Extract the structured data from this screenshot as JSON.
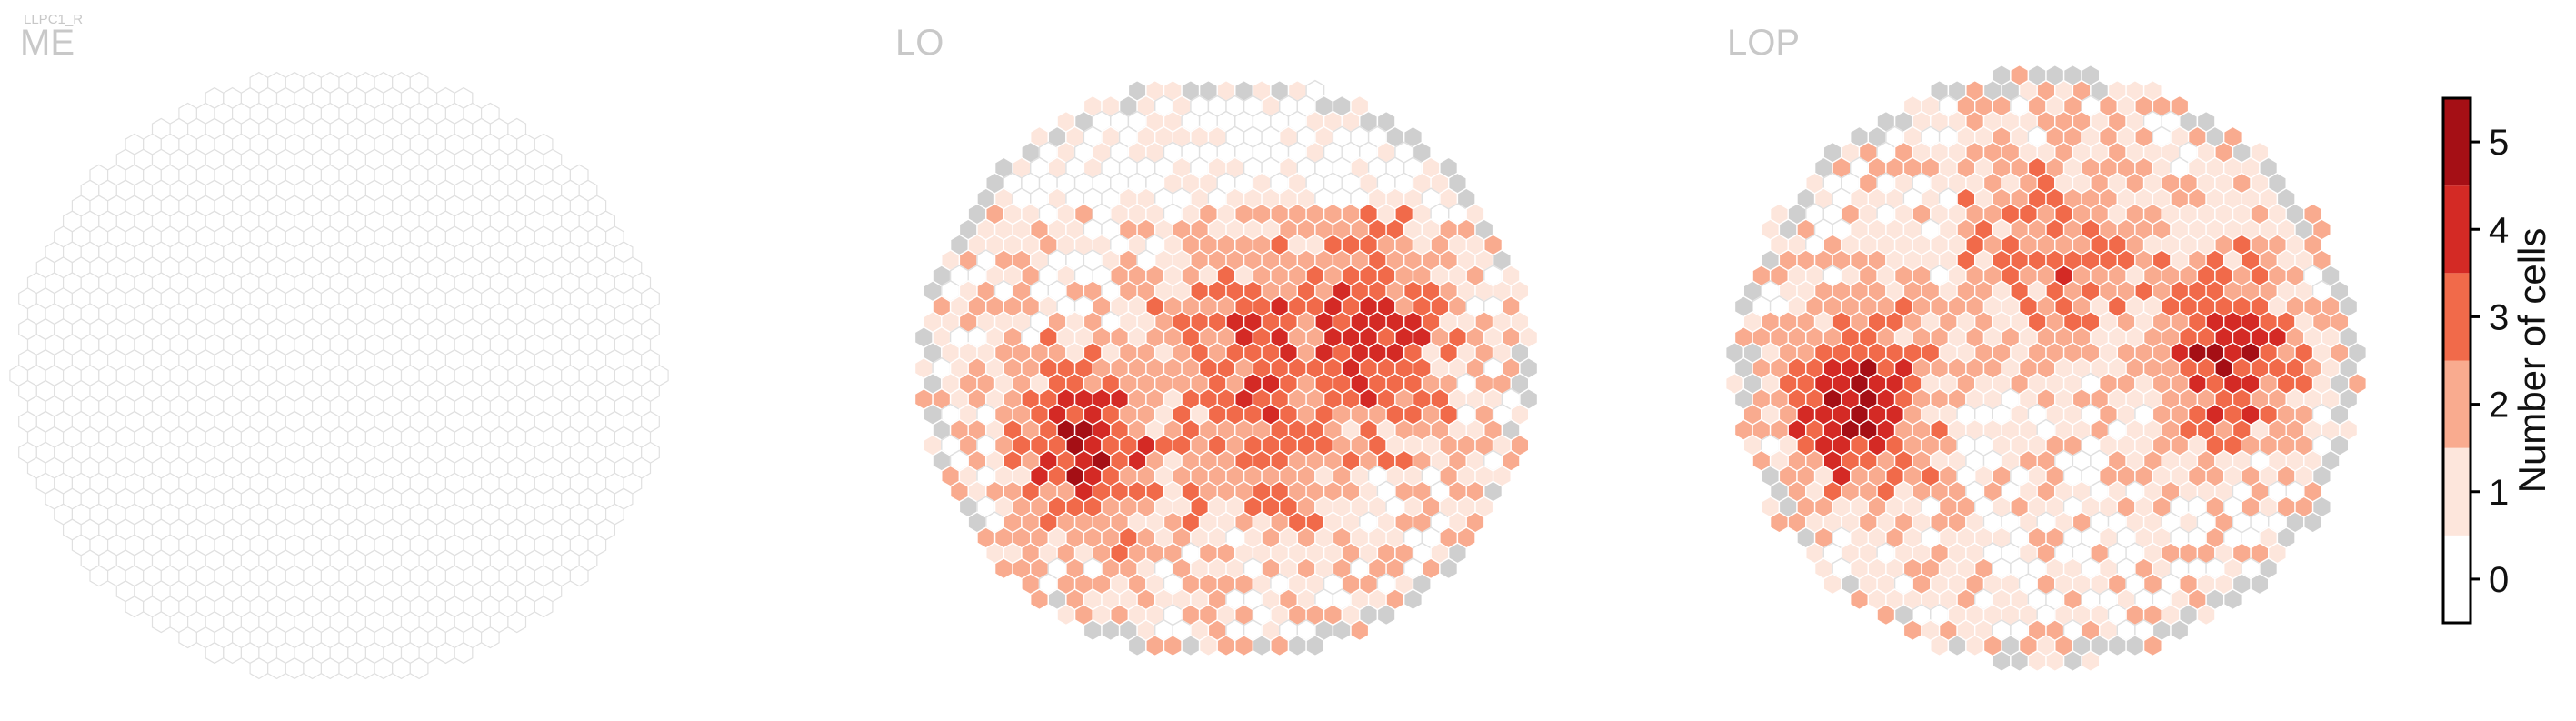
{
  "cell_type_label": "LLPC1_R",
  "chart_data": {
    "type": "heatmap",
    "subtype": "hexagonal-column-map",
    "panels": [
      {
        "name": "ME",
        "description_values": "all columns empty (0 cells)"
      },
      {
        "name": "LO",
        "values_range": [
          0,
          5
        ]
      },
      {
        "name": "LOP",
        "values_range": [
          0,
          5
        ]
      }
    ],
    "colorbar": {
      "label": "Number of cells",
      "ticks": [
        0,
        1,
        2,
        3,
        4,
        5
      ],
      "ticklabels": [
        "0",
        "1",
        "2",
        "3",
        "4",
        "5"
      ],
      "range": [
        -0.5,
        5.5
      ],
      "bins": [
        {
          "value": 0,
          "color": "#ffffff"
        },
        {
          "value": 1,
          "color": "#fde6dc"
        },
        {
          "value": 2,
          "color": "#f9ab8f"
        },
        {
          "value": 3,
          "color": "#f16a4a"
        },
        {
          "value": 4,
          "color": "#d42a25"
        },
        {
          "value": 5,
          "color": "#a50f15"
        }
      ]
    },
    "missing_color": "#cfcfcf",
    "empty_edge_color": "#e0e0e0",
    "grid": false,
    "legend": "right"
  }
}
